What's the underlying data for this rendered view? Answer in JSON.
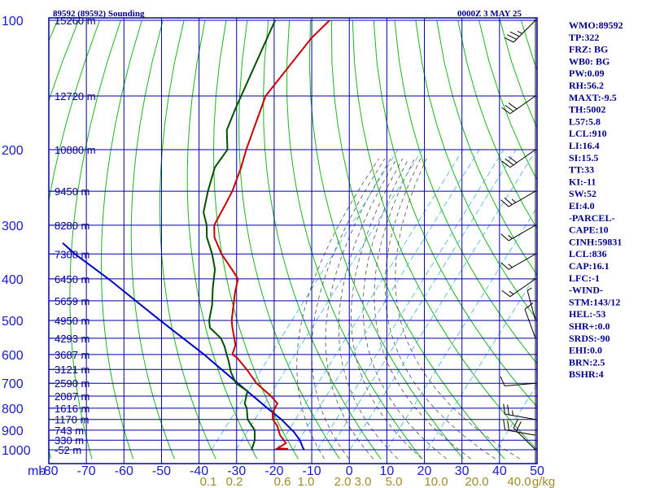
{
  "header": {
    "title": "89592 (89592) Sounding",
    "datetime": "0000Z  3 MAY 25"
  },
  "indices": [
    "WMO:89592",
    "TP:322",
    "FRZ: BG",
    "WB0: BG",
    "PW:0.09",
    "RH:56.2",
    "MAXT:-9.5",
    "TH:5002",
    "L57:5.8",
    "LCL:910",
    "LI:16.4",
    "SI:15.5",
    "TT:33",
    "KI:-11",
    "SW:52",
    "EI:4.0",
    "-PARCEL-",
    "CAPE:10",
    "CINH:59831",
    "LCL:836",
    "CAP:16.1",
    "LFC:-1",
    "-WIND-",
    "STM:143/12",
    "HEL:-53",
    "SHR+:0.0",
    "SRDS:-90",
    "EHI:0.0",
    "BRN:2.5",
    "BSHR:4"
  ],
  "colors": {
    "frame": "#0000a0",
    "dry_adiabat": "#19b419",
    "moist_adiabat": "#505050",
    "mixing_ratio": "#3cb4dc",
    "temperature": "#c80000",
    "dewpoint": "#005000",
    "parcel": "#0000c8",
    "mixing_label": "#a08c28"
  },
  "chart_data": {
    "type": "skew-t",
    "pressure_unit_label": "mb",
    "pressure_ticks": [
      "100",
      "200",
      "300",
      "400",
      "500",
      "600",
      "700",
      "800",
      "900",
      "1000"
    ],
    "temperature_ticks": [
      "-80",
      "-70",
      "-60",
      "-50",
      "-40",
      "-30",
      "-20",
      "-10",
      "0",
      "10",
      "20",
      "30",
      "40",
      "50"
    ],
    "mixing_ratio_labels": [
      "0.1",
      "0.2",
      "0.6",
      "1.0",
      "2.0",
      "3.0",
      "5.0",
      "10.0",
      "20.0",
      "40.0",
      "g/kg"
    ],
    "height_labels": [
      {
        "p": 100,
        "h": "15260 m"
      },
      {
        "p": 150,
        "h": "12720 m"
      },
      {
        "p": 200,
        "h": "10880 m"
      },
      {
        "p": 250,
        "h": "9450 m"
      },
      {
        "p": 300,
        "h": "8280 m"
      },
      {
        "p": 350,
        "h": "7308 m"
      },
      {
        "p": 400,
        "h": "6450 m"
      },
      {
        "p": 450,
        "h": "5659 m"
      },
      {
        "p": 500,
        "h": "4950 m"
      },
      {
        "p": 550,
        "h": "4293 m"
      },
      {
        "p": 600,
        "h": "3687 m"
      },
      {
        "p": 650,
        "h": "3121 m"
      },
      {
        "p": 700,
        "h": "2590 m"
      },
      {
        "p": 750,
        "h": "2087 m"
      },
      {
        "p": 800,
        "h": "1616 m"
      },
      {
        "p": 850,
        "h": "1170 m"
      },
      {
        "p": 900,
        "h": "743 m"
      },
      {
        "p": 950,
        "h": "330 m"
      },
      {
        "p": 1000,
        "h": "-52 m"
      }
    ],
    "temperature_profile": [
      [
        995,
        -16.5
      ],
      [
        993,
        -19.5
      ],
      [
        965,
        -18.5
      ],
      [
        925,
        -22
      ],
      [
        880,
        -25
      ],
      [
        850,
        -27.8
      ],
      [
        820,
        -29.5
      ],
      [
        780,
        -30.5
      ],
      [
        750,
        -34
      ],
      [
        700,
        -41
      ],
      [
        650,
        -47
      ],
      [
        610,
        -52.5
      ],
      [
        600,
        -54.5
      ],
      [
        570,
        -56
      ],
      [
        520,
        -61
      ],
      [
        500,
        -63
      ],
      [
        430,
        -69
      ],
      [
        400,
        -71.5
      ],
      [
        380,
        -75.5
      ],
      [
        350,
        -82
      ],
      [
        320,
        -88
      ],
      [
        300,
        -91
      ],
      [
        270,
        -93
      ],
      [
        250,
        -94.5
      ],
      [
        220,
        -98
      ],
      [
        200,
        -101
      ],
      [
        150,
        -109
      ],
      [
        110,
        -111
      ],
      [
        100,
        -110.5
      ]
    ],
    "dewpoint_profile": [
      [
        1000,
        -26
      ],
      [
        950,
        -27.5
      ],
      [
        900,
        -30
      ],
      [
        850,
        -34.5
      ],
      [
        800,
        -37.5
      ],
      [
        780,
        -39.2
      ],
      [
        730,
        -41.5
      ],
      [
        700,
        -46.5
      ],
      [
        660,
        -50.5
      ],
      [
        620,
        -54
      ],
      [
        600,
        -56
      ],
      [
        575,
        -58.5
      ],
      [
        550,
        -61.5
      ],
      [
        520,
        -67
      ],
      [
        500,
        -69
      ],
      [
        460,
        -72
      ],
      [
        420,
        -76
      ],
      [
        380,
        -80
      ],
      [
        350,
        -84.5
      ],
      [
        320,
        -90
      ],
      [
        300,
        -93
      ],
      [
        280,
        -97
      ],
      [
        250,
        -101
      ],
      [
        220,
        -105
      ],
      [
        200,
        -106
      ],
      [
        180,
        -111
      ],
      [
        160,
        -114
      ],
      [
        100,
        -125
      ]
    ],
    "parcel_path": [
      [
        1000,
        -12
      ],
      [
        990,
        -12.8
      ],
      [
        950,
        -15.5
      ],
      [
        910,
        -19
      ],
      [
        850,
        -25.5
      ],
      [
        800,
        -32
      ],
      [
        700,
        -46
      ],
      [
        600,
        -62
      ],
      [
        500,
        -82
      ],
      [
        400,
        -106
      ],
      [
        350,
        -121
      ],
      [
        330,
        -127
      ]
    ],
    "winds": [
      {
        "p": 100,
        "dir": 225,
        "speed": 35
      },
      {
        "p": 150,
        "dir": 235,
        "speed": 30
      },
      {
        "p": 200,
        "dir": 235,
        "speed": 30
      },
      {
        "p": 250,
        "dir": 240,
        "speed": 25
      },
      {
        "p": 300,
        "dir": 240,
        "speed": 15
      },
      {
        "p": 350,
        "dir": 240,
        "speed": 15
      },
      {
        "p": 400,
        "dir": 235,
        "speed": 15
      },
      {
        "p": 500,
        "dir": 345,
        "speed": 5
      },
      {
        "p": 550,
        "dir": 340,
        "speed": 10
      },
      {
        "p": 700,
        "dir": 265,
        "speed": 10
      },
      {
        "p": 850,
        "dir": 280,
        "speed": 25
      },
      {
        "p": 925,
        "dir": 280,
        "speed": 20
      },
      {
        "p": 1000,
        "dir": 315,
        "speed": 20
      }
    ]
  }
}
